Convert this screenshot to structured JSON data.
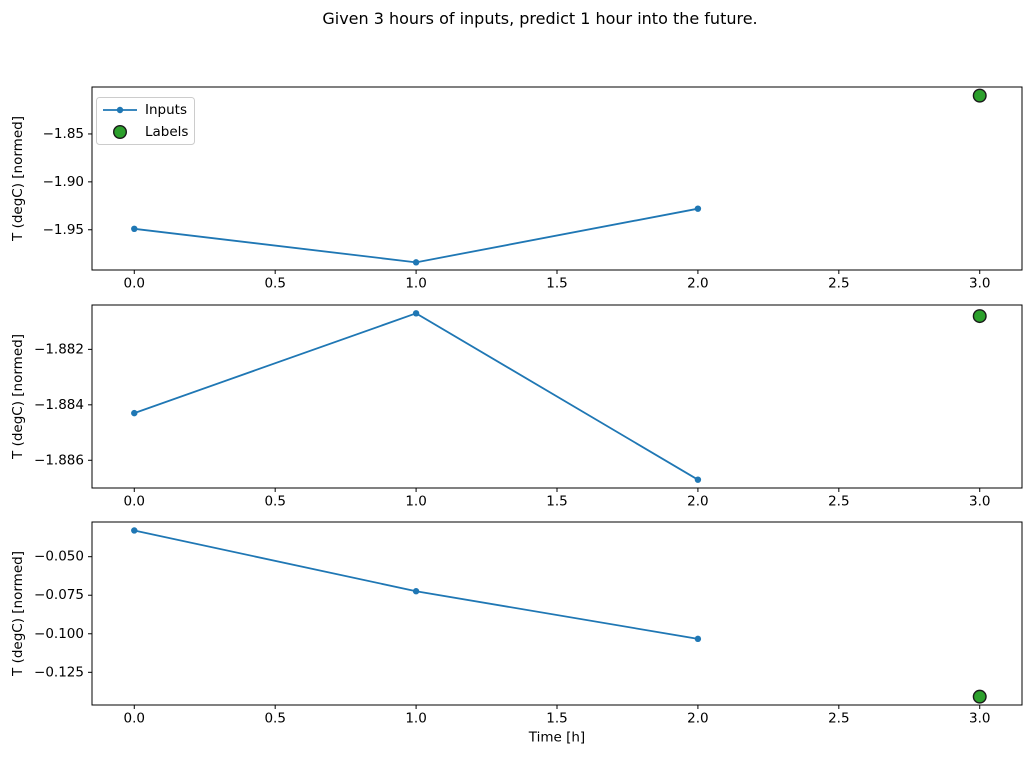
{
  "title": "Given 3 hours of inputs, predict 1 hour into the future.",
  "colors": {
    "inputs_line": "#1f77b4",
    "labels_marker": "#2ca02c",
    "marker_edge": "#1a1a1a",
    "axes": "#000000",
    "legend_border": "#cccccc",
    "legend_bg": "#ffffff"
  },
  "legend": {
    "position": "upper left of first subplot",
    "items": [
      {
        "name": "Inputs",
        "marker": "line-dot"
      },
      {
        "name": "Labels",
        "marker": "circle"
      }
    ]
  },
  "x_axis": {
    "label": "Time [h]",
    "xlim": [
      -0.15,
      3.15
    ],
    "ticks": [
      {
        "value": 0.0,
        "label": "0.0"
      },
      {
        "value": 0.5,
        "label": "0.5"
      },
      {
        "value": 1.0,
        "label": "1.0"
      },
      {
        "value": 1.5,
        "label": "1.5"
      },
      {
        "value": 2.0,
        "label": "2.0"
      },
      {
        "value": 2.5,
        "label": "2.5"
      },
      {
        "value": 3.0,
        "label": "3.0"
      }
    ]
  },
  "chart_data": [
    {
      "type": "line",
      "ylabel": "T (degC) [normed]",
      "x": [
        0,
        1,
        2
      ],
      "series": [
        {
          "name": "Inputs",
          "values": [
            -1.949,
            -1.984,
            -1.928
          ]
        }
      ],
      "label_point": {
        "series": "Labels",
        "x": 3,
        "y": -1.81
      },
      "yticks": [
        {
          "value": -1.85,
          "label": "−1.85"
        },
        {
          "value": -1.9,
          "label": "−1.90"
        },
        {
          "value": -1.95,
          "label": "−1.95"
        }
      ],
      "ylim": [
        -1.992,
        -1.801
      ],
      "grid": false,
      "has_legend": true
    },
    {
      "type": "line",
      "ylabel": "T (degC) [normed]",
      "x": [
        0,
        1,
        2
      ],
      "series": [
        {
          "name": "Inputs",
          "values": [
            -1.8843,
            -1.8807,
            -1.8867
          ]
        }
      ],
      "label_point": {
        "series": "Labels",
        "x": 3,
        "y": -1.8808
      },
      "yticks": [
        {
          "value": -1.882,
          "label": "−1.882"
        },
        {
          "value": -1.884,
          "label": "−1.884"
        },
        {
          "value": -1.886,
          "label": "−1.886"
        }
      ],
      "ylim": [
        -1.887,
        -1.8804
      ],
      "grid": false,
      "has_legend": false
    },
    {
      "type": "line",
      "ylabel": "T (degC) [normed]",
      "x": [
        0,
        1,
        2
      ],
      "series": [
        {
          "name": "Inputs",
          "values": [
            -0.033,
            -0.0724,
            -0.1033
          ]
        }
      ],
      "label_point": {
        "series": "Labels",
        "x": 3,
        "y": -0.1408
      },
      "yticks": [
        {
          "value": -0.05,
          "label": "−0.050"
        },
        {
          "value": -0.075,
          "label": "−0.075"
        },
        {
          "value": -0.1,
          "label": "−0.100"
        },
        {
          "value": -0.125,
          "label": "−0.125"
        }
      ],
      "ylim": [
        -0.1462,
        -0.0275
      ],
      "grid": false,
      "has_legend": false
    }
  ]
}
